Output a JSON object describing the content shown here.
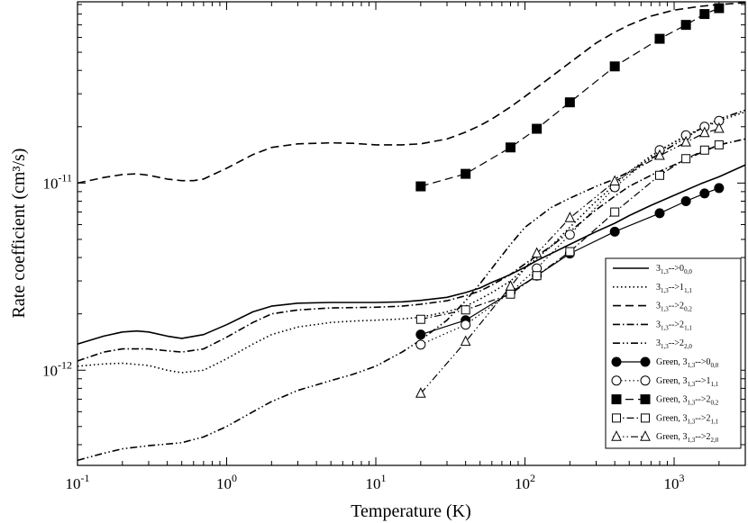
{
  "chart_data": {
    "type": "line",
    "title": "",
    "xlabel": "Temperature (K)",
    "ylabel": "Rate coefficient (cm³/s)",
    "xscale": "log",
    "yscale": "log",
    "xlim": [
      0.1,
      3000
    ],
    "ylim": [
      3.1e-13,
      9.3e-11
    ],
    "x_tick_labels": [
      {
        "base": "10",
        "exp": "-1",
        "value": 0.1
      },
      {
        "base": "10",
        "exp": "0",
        "value": 1
      },
      {
        "base": "10",
        "exp": "1",
        "value": 10
      },
      {
        "base": "10",
        "exp": "2",
        "value": 100
      },
      {
        "base": "10",
        "exp": "3",
        "value": 1000
      }
    ],
    "y_tick_labels": [
      {
        "base": "10",
        "exp": "-12",
        "value": 1e-12
      },
      {
        "base": "10",
        "exp": "-11",
        "value": 1e-11
      }
    ],
    "legend_position": "lower-right",
    "series": [
      {
        "name": "3_{1,3}-->0_{0,0}",
        "style": "solid",
        "marker": "none",
        "x": [
          0.1,
          0.15,
          0.2,
          0.25,
          0.3,
          0.4,
          0.5,
          0.7,
          1,
          1.5,
          2,
          3,
          5,
          7,
          10,
          15,
          20,
          30,
          40,
          50,
          60,
          70,
          80,
          100,
          120,
          150,
          200,
          300,
          400,
          500,
          700,
          1000,
          1500,
          2000,
          3000
        ],
        "y": [
          1.38e-12,
          1.52e-12,
          1.6e-12,
          1.62e-12,
          1.6e-12,
          1.52e-12,
          1.48e-12,
          1.55e-12,
          1.75e-12,
          2.05e-12,
          2.2e-12,
          2.28e-12,
          2.3e-12,
          2.3e-12,
          2.3e-12,
          2.32e-12,
          2.36e-12,
          2.45e-12,
          2.6e-12,
          2.75e-12,
          2.95e-12,
          3.1e-12,
          3.25e-12,
          3.55e-12,
          3.85e-12,
          4.2e-12,
          4.7e-12,
          5.5e-12,
          6.1e-12,
          6.7e-12,
          7.6e-12,
          8.6e-12,
          9.9e-12,
          1.08e-11,
          1.25e-11
        ]
      },
      {
        "name": "3_{1,3}-->1_{1,1}",
        "style": "dotted",
        "marker": "none",
        "x": [
          0.1,
          0.15,
          0.2,
          0.3,
          0.4,
          0.5,
          0.7,
          1,
          1.5,
          2,
          3,
          5,
          7,
          10,
          15,
          20,
          30,
          40,
          50,
          60,
          80,
          100,
          150,
          200,
          300,
          400,
          500,
          700,
          1000,
          1500,
          2000,
          3000
        ],
        "y": [
          1.05e-12,
          1.08e-12,
          1.09e-12,
          1.06e-12,
          1e-12,
          9.7e-13,
          1e-12,
          1.15e-12,
          1.38e-12,
          1.55e-12,
          1.7e-12,
          1.8e-12,
          1.83e-12,
          1.85e-12,
          1.88e-12,
          1.92e-12,
          2.05e-12,
          2.2e-12,
          2.4e-12,
          2.6e-12,
          3e-12,
          3.5e-12,
          4.6e-12,
          5.8e-12,
          8e-12,
          9.8e-12,
          1.15e-11,
          1.4e-11,
          1.65e-11,
          1.95e-11,
          2.15e-11,
          2.4e-11
        ]
      },
      {
        "name": "3_{1,3}-->2_{0,2}",
        "style": "dashed",
        "marker": "none",
        "x": [
          0.1,
          0.15,
          0.2,
          0.25,
          0.3,
          0.4,
          0.5,
          0.6,
          0.7,
          1,
          1.5,
          2,
          3,
          5,
          7,
          10,
          15,
          20,
          30,
          40,
          50,
          60,
          80,
          100,
          150,
          200,
          300,
          400,
          500,
          700,
          1000,
          1500,
          2000,
          3000
        ],
        "y": [
          1e-11,
          1.07e-11,
          1.11e-11,
          1.12e-11,
          1.1e-11,
          1.05e-11,
          1.03e-11,
          1.03e-11,
          1.05e-11,
          1.2e-11,
          1.42e-11,
          1.55e-11,
          1.62e-11,
          1.64e-11,
          1.63e-11,
          1.6e-11,
          1.6e-11,
          1.62e-11,
          1.72e-11,
          1.87e-11,
          2.03e-11,
          2.2e-11,
          2.55e-11,
          2.9e-11,
          3.7e-11,
          4.4e-11,
          5.6e-11,
          6.4e-11,
          7e-11,
          7.8e-11,
          8.4e-11,
          8.8e-11,
          9e-11,
          9.2e-11
        ]
      },
      {
        "name": "3_{1,3}-->2_{1,1}",
        "style": "dashdot",
        "marker": "none",
        "x": [
          0.1,
          0.15,
          0.2,
          0.3,
          0.4,
          0.5,
          0.7,
          1,
          1.5,
          2,
          3,
          5,
          7,
          10,
          15,
          20,
          30,
          40,
          50,
          60,
          80,
          100,
          150,
          200,
          300,
          400,
          500,
          700,
          1000,
          1500,
          2000,
          3000
        ],
        "y": [
          1.12e-12,
          1.25e-12,
          1.3e-12,
          1.3e-12,
          1.27e-12,
          1.25e-12,
          1.3e-12,
          1.5e-12,
          1.8e-12,
          2e-12,
          2.1e-12,
          2.15e-12,
          2.16e-12,
          2.17e-12,
          2.2e-12,
          2.25e-12,
          2.35e-12,
          2.5e-12,
          2.65e-12,
          2.85e-12,
          3.25e-12,
          3.7e-12,
          4.6e-12,
          5.5e-12,
          7.2e-12,
          8.5e-12,
          9.6e-12,
          1.1e-11,
          1.25e-11,
          1.45e-11,
          1.6e-11,
          1.72e-11
        ]
      },
      {
        "name": "3_{1,3}-->2_{2,0}",
        "style": "dashdotdot",
        "marker": "none",
        "x": [
          0.1,
          0.15,
          0.2,
          0.3,
          0.5,
          0.7,
          1,
          1.5,
          2,
          3,
          5,
          7,
          10,
          15,
          20,
          30,
          40,
          50,
          60,
          80,
          100,
          150,
          200,
          300,
          400,
          500,
          700,
          1000,
          1500,
          2000,
          3000
        ],
        "y": [
          3.3e-13,
          3.6e-13,
          3.8e-13,
          3.95e-13,
          4.1e-13,
          4.4e-13,
          5e-13,
          6e-13,
          6.8e-13,
          7.8e-13,
          8.8e-13,
          9.5e-13,
          1.05e-12,
          1.25e-12,
          1.45e-12,
          1.85e-12,
          2.35e-12,
          2.9e-12,
          3.5e-12,
          4.7e-12,
          5.8e-12,
          7.4e-12,
          8.3e-12,
          9.6e-12,
          1.05e-11,
          1.15e-11,
          1.35e-11,
          1.6e-11,
          1.95e-11,
          2.2e-11,
          2.45e-11
        ]
      },
      {
        "name": "Green, 3_{1,3}-->0_{0,0}",
        "style": "solid",
        "marker": "filled-circle",
        "x": [
          20,
          40,
          80,
          120,
          200,
          400,
          800,
          1200,
          1600,
          2000
        ],
        "y": [
          1.55e-12,
          1.85e-12,
          2.6e-12,
          3.2e-12,
          4.2e-12,
          5.5e-12,
          6.9e-12,
          8e-12,
          8.8e-12,
          9.4e-12
        ]
      },
      {
        "name": "Green, 3_{1,3}-->1_{1,1}",
        "style": "dotted",
        "marker": "open-circle",
        "x": [
          20,
          40,
          80,
          120,
          200,
          400,
          800,
          1200,
          1600,
          2000
        ],
        "y": [
          1.37e-12,
          1.75e-12,
          2.6e-12,
          3.5e-12,
          5.3e-12,
          9.5e-12,
          1.5e-11,
          1.8e-11,
          2e-11,
          2.15e-11
        ]
      },
      {
        "name": "Green, 3_{1,3}-->2_{0,2}",
        "style": "dashed",
        "marker": "filled-square",
        "x": [
          20,
          40,
          80,
          120,
          200,
          400,
          800,
          1200,
          1600,
          2000
        ],
        "y": [
          9.6e-12,
          1.12e-11,
          1.55e-11,
          1.95e-11,
          2.7e-11,
          4.2e-11,
          5.9e-11,
          7e-11,
          8e-11,
          8.6e-11
        ]
      },
      {
        "name": "Green, 3_{1,3}-->2_{1,1}",
        "style": "dashdot",
        "marker": "open-square",
        "x": [
          20,
          40,
          80,
          120,
          200,
          400,
          800,
          1200,
          1600,
          2000
        ],
        "y": [
          1.87e-12,
          2.1e-12,
          2.55e-12,
          3.2e-12,
          4.3e-12,
          7e-12,
          1.1e-11,
          1.35e-11,
          1.5e-11,
          1.6e-11
        ]
      },
      {
        "name": "Green, 3_{1,3}-->2_{2,0}",
        "style": "dashdotdot",
        "marker": "open-triangle",
        "x": [
          20,
          40,
          80,
          120,
          200,
          400,
          800,
          1200,
          1600,
          2000
        ],
        "y": [
          7.5e-13,
          1.42e-12,
          2.8e-12,
          4.2e-12,
          6.5e-12,
          1.02e-11,
          1.4e-11,
          1.65e-11,
          1.85e-11,
          1.95e-11
        ]
      }
    ],
    "legend": [
      {
        "prefix": "",
        "main": "3",
        "sub1": "1,3",
        "mid": "-->",
        "target": "0",
        "sub2": "0,0"
      },
      {
        "prefix": "",
        "main": "3",
        "sub1": "1,3",
        "mid": "-->",
        "target": "1",
        "sub2": "1,1"
      },
      {
        "prefix": "",
        "main": "3",
        "sub1": "1,3",
        "mid": "-->",
        "target": "2",
        "sub2": "0,2"
      },
      {
        "prefix": "",
        "main": "3",
        "sub1": "1,3",
        "mid": "-->",
        "target": "2",
        "sub2": "1,1"
      },
      {
        "prefix": "",
        "main": "3",
        "sub1": "1,3",
        "mid": "-->",
        "target": "2",
        "sub2": "2,0"
      },
      {
        "prefix": "Green, ",
        "main": "3",
        "sub1": "1,3",
        "mid": "-->",
        "target": "0",
        "sub2": "0,0"
      },
      {
        "prefix": "Green, ",
        "main": "3",
        "sub1": "1,3",
        "mid": "-->",
        "target": "1",
        "sub2": "1,1"
      },
      {
        "prefix": "Green, ",
        "main": "3",
        "sub1": "1,3",
        "mid": "-->",
        "target": "2",
        "sub2": "0,2"
      },
      {
        "prefix": "Green, ",
        "main": "3",
        "sub1": "1,3",
        "mid": "-->",
        "target": "2",
        "sub2": "1,1"
      },
      {
        "prefix": "Green, ",
        "main": "3",
        "sub1": "1,3",
        "mid": "-->",
        "target": "2",
        "sub2": "2,0"
      }
    ]
  }
}
